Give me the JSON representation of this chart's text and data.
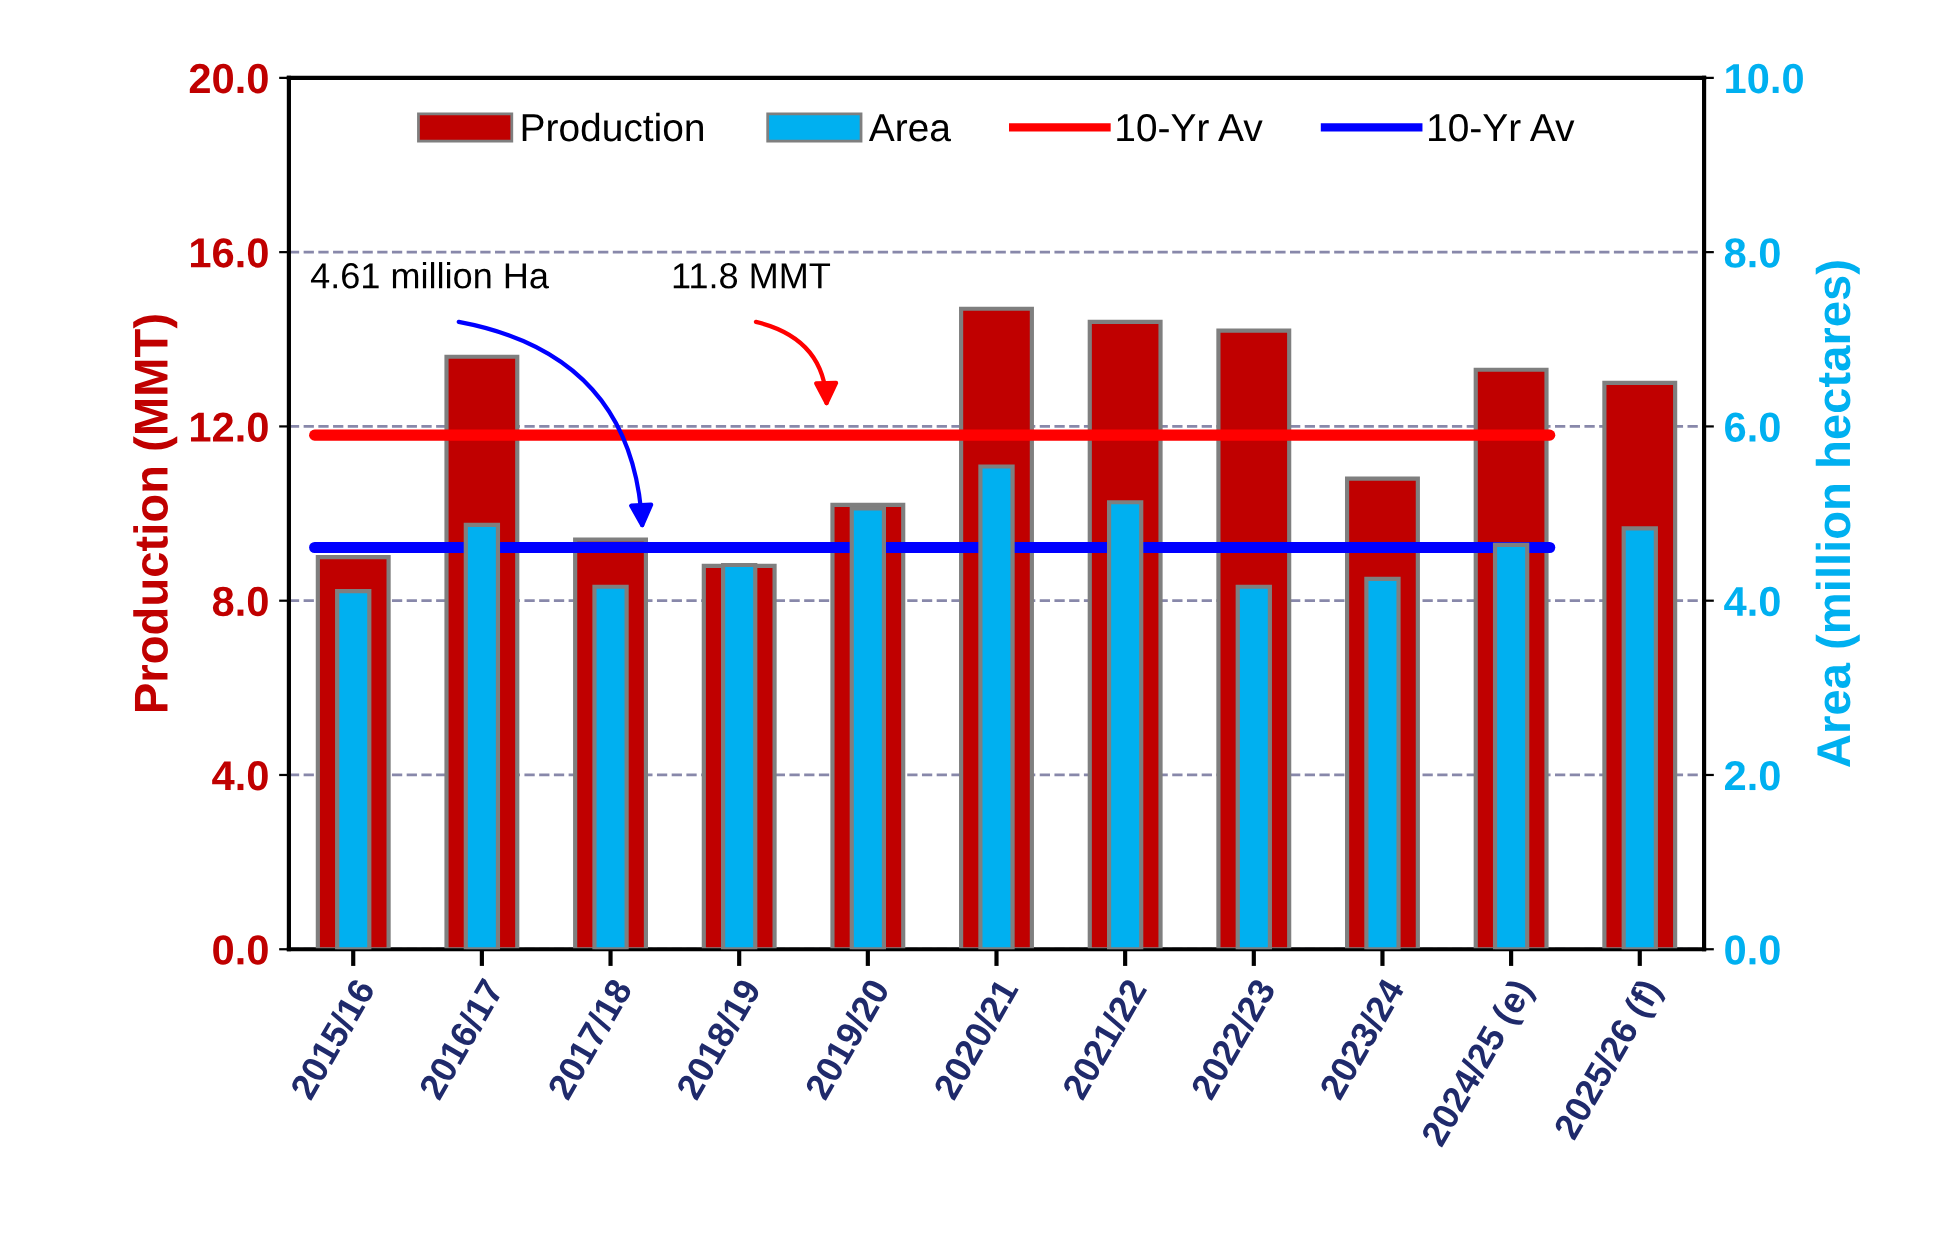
{
  "chart_data": {
    "type": "bar",
    "categories": [
      "2015/16",
      "2016/17",
      "2017/18",
      "2018/19",
      "2019/20",
      "2020/21",
      "2021/22",
      "2022/23",
      "2023/24",
      "2024/25 (e)",
      "2025/26 (f)"
    ],
    "series": [
      {
        "name": "Production",
        "color": "#c00000",
        "values": [
          9.0,
          13.6,
          9.4,
          8.8,
          10.2,
          14.7,
          14.4,
          14.2,
          10.8,
          13.3,
          13.0
        ]
      },
      {
        "name": "Area",
        "color": "#00b0f0",
        "axis": "y2",
        "values": [
          4.11,
          4.87,
          4.16,
          4.41,
          5.06,
          5.54,
          5.13,
          4.16,
          4.25,
          4.64,
          4.83
        ]
      }
    ],
    "ylabel": "Production (MMT)",
    "y2label": "Area (million hectares)",
    "ylim": [
      0,
      20
    ],
    "yticks": [
      {
        "value": 0,
        "label": "0.0"
      },
      {
        "value": 4,
        "label": "4.0"
      },
      {
        "value": 8,
        "label": "8.0"
      },
      {
        "value": 12,
        "label": "12.0"
      },
      {
        "value": 16,
        "label": "16.0"
      },
      {
        "value": 20,
        "label": "20.0"
      }
    ],
    "y2lim": [
      0,
      10
    ],
    "y2ticks": [
      {
        "value": 0,
        "label": "0.0"
      },
      {
        "value": 2,
        "label": "2.0"
      },
      {
        "value": 4,
        "label": "4.0"
      },
      {
        "value": 6,
        "label": "6.0"
      },
      {
        "value": 8,
        "label": "8.0"
      },
      {
        "value": 10,
        "label": "10.0"
      }
    ],
    "ref_lines": [
      {
        "axis": "y",
        "value": 11.8,
        "label": "10-Yr Av",
        "color": "#ff0000"
      },
      {
        "axis": "y2",
        "value": 4.61,
        "label": "10-Yr Av",
        "color": "#0000ff"
      }
    ],
    "annotations": [
      "4.61 million Ha",
      "11.8 MMT"
    ],
    "grid": "y",
    "legend": "top"
  }
}
